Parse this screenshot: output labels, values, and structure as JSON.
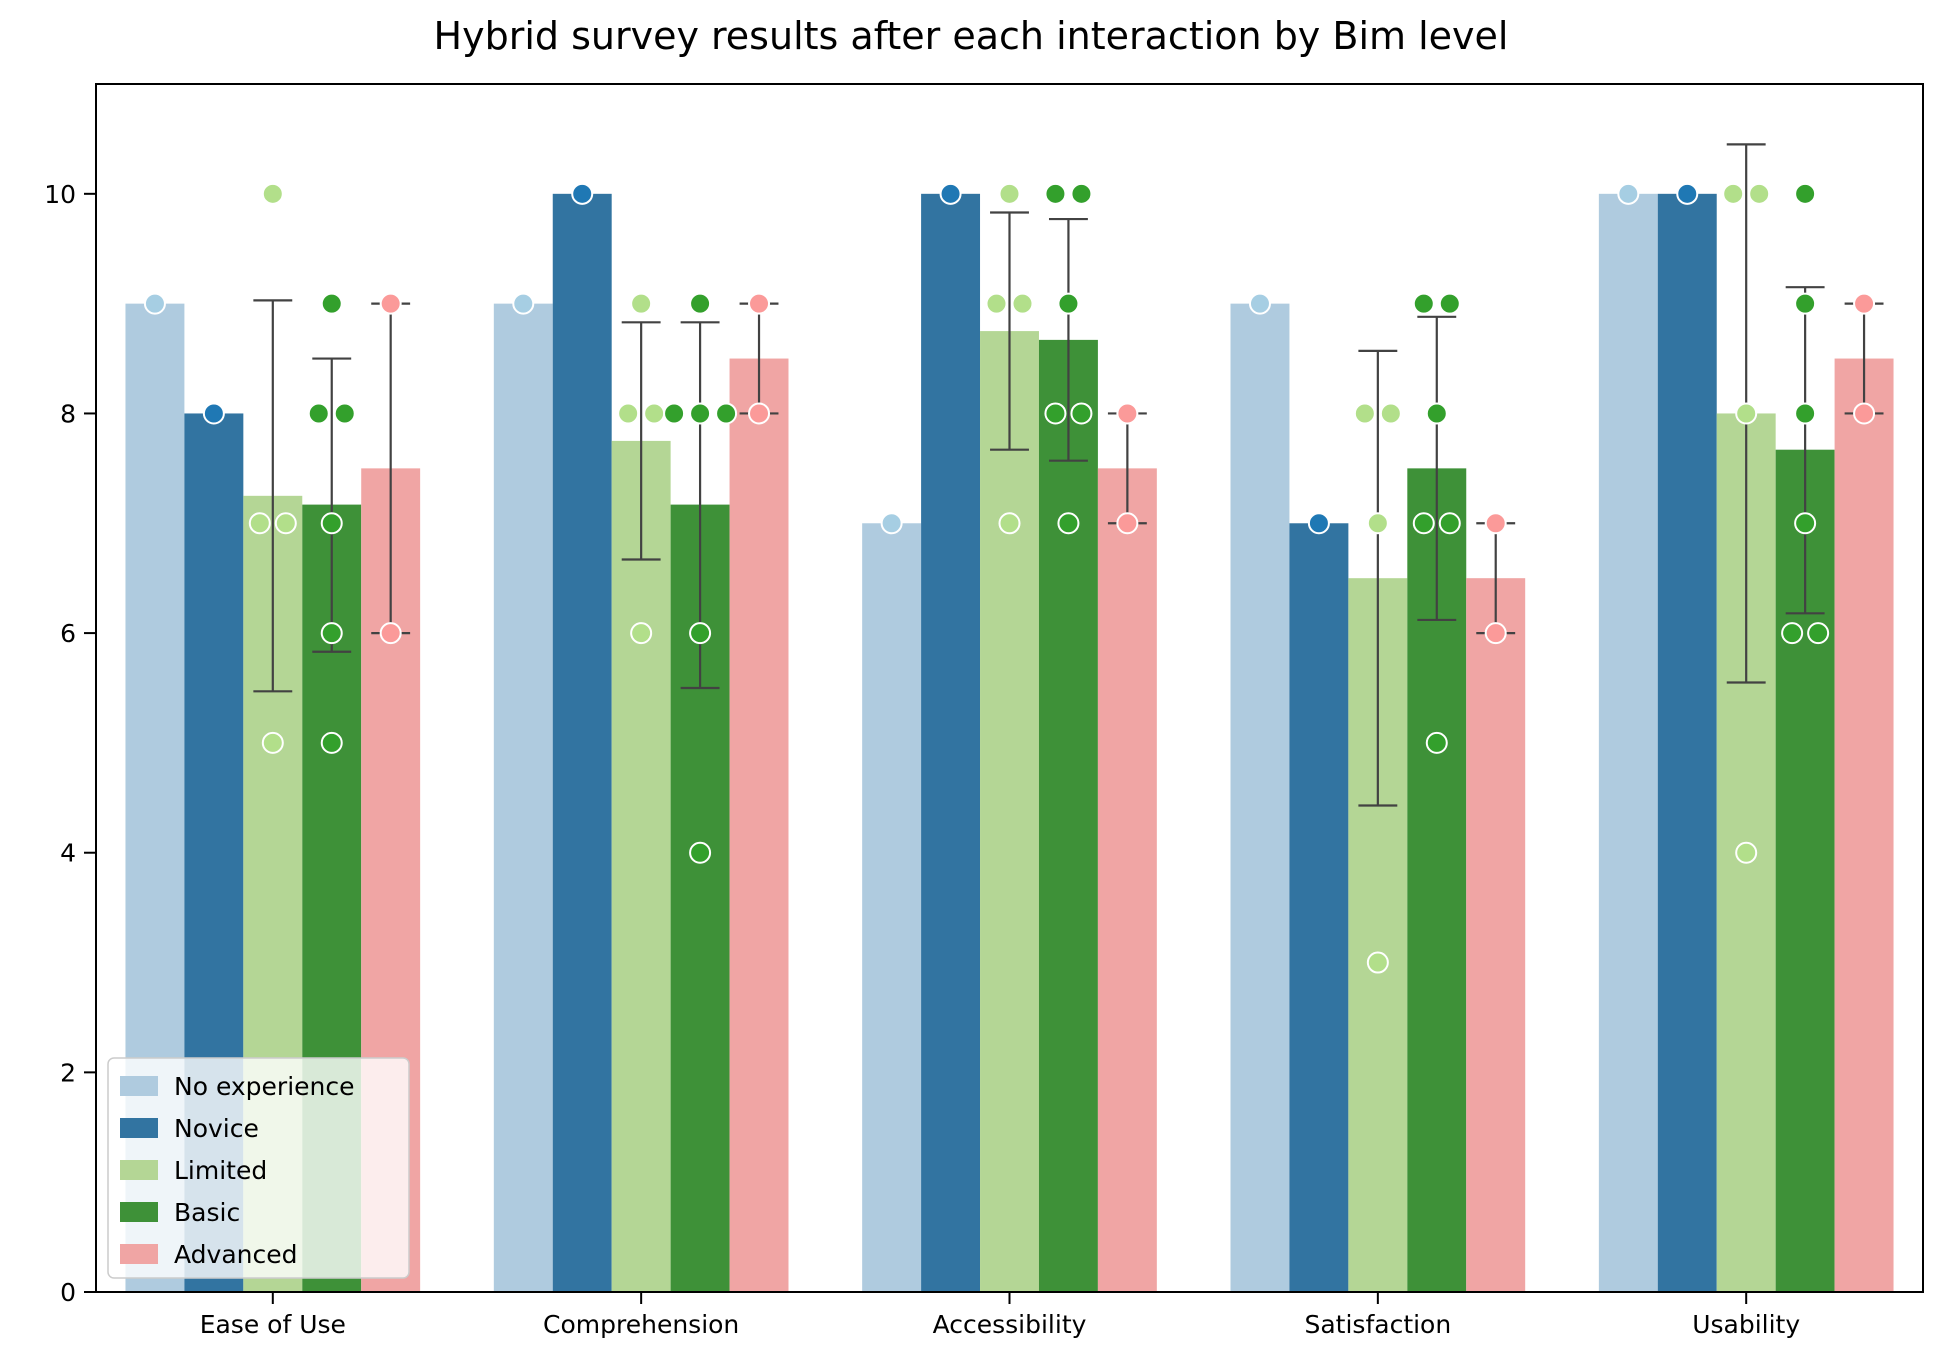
{
  "chart_data": {
    "type": "bar",
    "title": "Hybrid survey results after each interaction by Bim level",
    "xlabel": "",
    "ylabel": "",
    "categories": [
      "Ease of Use",
      "Comprehension",
      "Accessibility",
      "Satisfaction",
      "Usability"
    ],
    "ylim": [
      0,
      11
    ],
    "yticks": [
      "0",
      "2",
      "4",
      "6",
      "8",
      "10"
    ],
    "grid": false,
    "legend_position": "bottom-left",
    "series": [
      {
        "name": "No experience",
        "color": "#afcbdf",
        "point_color": "#a6cee3",
        "values": [
          9,
          9,
          7,
          9,
          10
        ],
        "errors": [
          null,
          null,
          null,
          null,
          null
        ],
        "points": [
          [
            9
          ],
          [
            9
          ],
          [
            7
          ],
          [
            9
          ],
          [
            10
          ]
        ]
      },
      {
        "name": "Novice",
        "color": "#3274a1",
        "point_color": "#1f78b4",
        "values": [
          8,
          10,
          10,
          7,
          10
        ],
        "errors": [
          null,
          null,
          null,
          null,
          null
        ],
        "points": [
          [
            8
          ],
          [
            10
          ],
          [
            10
          ],
          [
            7
          ],
          [
            10
          ]
        ]
      },
      {
        "name": "Limited",
        "color": "#b4d695",
        "point_color": "#b2df8a",
        "values": [
          7.25,
          7.75,
          8.75,
          6.5,
          8
        ],
        "errors": [
          [
            5.47,
            9.03
          ],
          [
            6.67,
            8.83
          ],
          [
            7.67,
            9.83
          ],
          [
            4.43,
            8.57
          ],
          [
            5.55,
            10.45
          ]
        ],
        "points": [
          [
            7,
            7,
            10,
            5
          ],
          [
            8,
            8,
            9,
            6
          ],
          [
            9,
            9,
            10,
            7
          ],
          [
            8,
            8,
            7,
            3
          ],
          [
            10,
            10,
            8,
            4
          ]
        ]
      },
      {
        "name": "Basic",
        "color": "#3e9138",
        "point_color": "#33a02c",
        "values": [
          7.17,
          7.17,
          8.67,
          7.5,
          7.67
        ],
        "errors": [
          [
            5.83,
            8.5
          ],
          [
            5.5,
            8.83
          ],
          [
            7.57,
            9.77
          ],
          [
            6.12,
            8.88
          ],
          [
            6.18,
            9.15
          ]
        ],
        "points": [
          [
            8,
            9,
            8,
            7,
            6,
            5
          ],
          [
            8,
            9,
            8,
            8,
            6,
            4
          ],
          [
            10,
            10,
            9,
            8,
            8,
            7
          ],
          [
            9,
            9,
            8,
            7,
            7,
            5
          ],
          [
            10,
            9,
            8,
            7,
            6,
            6
          ]
        ]
      },
      {
        "name": "Advanced",
        "color": "#f0a5a4",
        "point_color": "#fb9a99",
        "values": [
          7.5,
          8.5,
          7.5,
          6.5,
          8.5
        ],
        "errors": [
          [
            6,
            9
          ],
          [
            8,
            9
          ],
          [
            7,
            8
          ],
          [
            6,
            7
          ],
          [
            8,
            9
          ]
        ],
        "points": [
          [
            9,
            6
          ],
          [
            9,
            8
          ],
          [
            8,
            7
          ],
          [
            7,
            6
          ],
          [
            9,
            8
          ]
        ]
      }
    ]
  }
}
